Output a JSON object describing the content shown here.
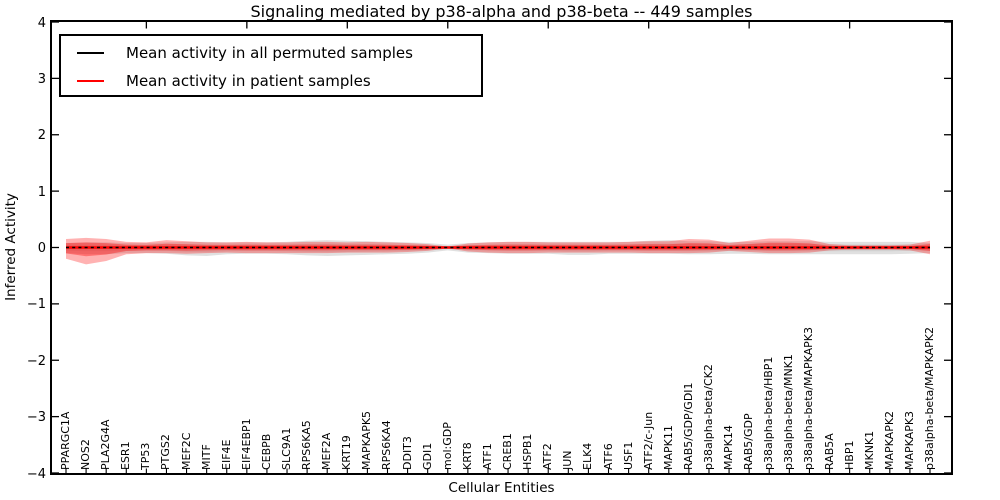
{
  "chart_data": {
    "type": "area",
    "title": "Signaling mediated by p38-alpha and p38-beta -- 449 samples",
    "xlabel": "Cellular Entities",
    "ylabel": "Inferred Activity",
    "ylim": [
      -4,
      4
    ],
    "yticks": [
      4,
      3,
      2,
      1,
      0,
      -1,
      -2,
      -3,
      -4
    ],
    "ytick_labels": [
      "4",
      "3",
      "2",
      "1",
      "0",
      "−1",
      "−2",
      "−3",
      "−4"
    ],
    "grid": false,
    "legend_position": "upper left",
    "legend": [
      {
        "label": "Mean activity in all permuted samples",
        "color": "#000000"
      },
      {
        "label": "Mean activity in patient samples",
        "color": "#ff0000"
      }
    ],
    "categories": [
      "PPARGC1A",
      "NOS2",
      "PLA2G4A",
      "ESR1",
      "TP53",
      "PTGS2",
      "MEF2C",
      "MITF",
      "EIF4E",
      "EIF4EBP1",
      "CEBPB",
      "SLC9A1",
      "RPS6KA5",
      "MEF2A",
      "KRT19",
      "MAPKAPK5",
      "RPS6KA4",
      "DDIT3",
      "GDI1",
      "mol:GDP",
      "KRT8",
      "ATF1",
      "CREB1",
      "HSPB1",
      "ATF2",
      "JUN",
      "ELK4",
      "ATF6",
      "USF1",
      "ATF2/c-Jun",
      "MAPK11",
      "RAB5/GDP/GDI1",
      "p38alpha-beta/CK2",
      "MAPK14",
      "RAB5/GDP",
      "p38alpha-beta/HBP1",
      "p38alpha-beta/MNK1",
      "p38alpha-beta/MAPKAPK3",
      "RAB5A",
      "HBP1",
      "MKNK1",
      "MAPKAPK2",
      "MAPKAPK3",
      "p38alpha-beta/MAPKAPK2"
    ],
    "series": [
      {
        "name": "Mean activity in all permuted samples",
        "type": "line",
        "color": "#000000",
        "dashed": true,
        "values": [
          0,
          0,
          0,
          0,
          0,
          0,
          0,
          0,
          0,
          0,
          0,
          0,
          0,
          0,
          0,
          0,
          0,
          0,
          0,
          0,
          0,
          0,
          0,
          0,
          0,
          0,
          0,
          0,
          0,
          0,
          0,
          0,
          0,
          0,
          0,
          0,
          0,
          0,
          0,
          0,
          0,
          0,
          0,
          0
        ]
      },
      {
        "name": "Mean activity in patient samples",
        "type": "line",
        "color": "#ff0000",
        "dashed": false,
        "values": [
          0,
          0,
          0,
          0,
          0,
          0,
          0,
          0,
          0,
          0,
          0,
          0,
          0,
          0,
          0,
          0,
          0,
          0,
          0,
          0,
          0,
          0,
          0,
          0,
          0,
          0,
          0,
          0,
          0,
          0,
          0,
          0,
          0,
          0,
          0,
          0,
          0,
          0,
          0,
          0,
          0,
          0,
          0,
          0
        ]
      },
      {
        "name": "Permuted samples band",
        "type": "band",
        "color": "#999999",
        "upper": [
          0.08,
          0.09,
          0.09,
          0.08,
          0.08,
          0.09,
          0.1,
          0.1,
          0.09,
          0.09,
          0.09,
          0.1,
          0.12,
          0.13,
          0.12,
          0.11,
          0.1,
          0.09,
          0.08,
          0.05,
          0.08,
          0.09,
          0.1,
          0.1,
          0.1,
          0.1,
          0.1,
          0.1,
          0.1,
          0.12,
          0.13,
          0.11,
          0.11,
          0.1,
          0.1,
          0.11,
          0.11,
          0.11,
          0.1,
          0.1,
          0.1,
          0.1,
          0.1,
          0.08
        ],
        "lower": [
          -0.1,
          -0.12,
          -0.12,
          -0.1,
          -0.1,
          -0.11,
          -0.14,
          -0.15,
          -0.12,
          -0.11,
          -0.11,
          -0.12,
          -0.14,
          -0.15,
          -0.14,
          -0.13,
          -0.12,
          -0.11,
          -0.09,
          -0.05,
          -0.09,
          -0.1,
          -0.11,
          -0.11,
          -0.11,
          -0.13,
          -0.13,
          -0.11,
          -0.11,
          -0.11,
          -0.11,
          -0.12,
          -0.12,
          -0.11,
          -0.11,
          -0.12,
          -0.12,
          -0.12,
          -0.12,
          -0.12,
          -0.12,
          -0.12,
          -0.11,
          -0.1
        ]
      },
      {
        "name": "Patient samples band",
        "type": "band",
        "color": "#ff0000",
        "upper": [
          0.15,
          0.17,
          0.15,
          0.1,
          0.09,
          0.13,
          0.11,
          0.09,
          0.09,
          0.1,
          0.09,
          0.09,
          0.1,
          0.1,
          0.09,
          0.1,
          0.09,
          0.08,
          0.06,
          0.015,
          0.07,
          0.09,
          0.1,
          0.1,
          0.09,
          0.09,
          0.09,
          0.09,
          0.1,
          0.11,
          0.11,
          0.15,
          0.14,
          0.08,
          0.12,
          0.16,
          0.16,
          0.14,
          0.06,
          0.04,
          0.04,
          0.04,
          0.05,
          0.12
        ],
        "lower": [
          -0.2,
          -0.3,
          -0.24,
          -0.12,
          -0.1,
          -0.1,
          -0.11,
          -0.1,
          -0.09,
          -0.1,
          -0.1,
          -0.1,
          -0.1,
          -0.1,
          -0.09,
          -0.09,
          -0.09,
          -0.08,
          -0.06,
          -0.015,
          -0.07,
          -0.09,
          -0.1,
          -0.1,
          -0.09,
          -0.09,
          -0.09,
          -0.09,
          -0.09,
          -0.1,
          -0.1,
          -0.1,
          -0.09,
          -0.06,
          -0.08,
          -0.1,
          -0.1,
          -0.09,
          -0.05,
          -0.04,
          -0.04,
          -0.04,
          -0.05,
          -0.12
        ]
      }
    ]
  }
}
